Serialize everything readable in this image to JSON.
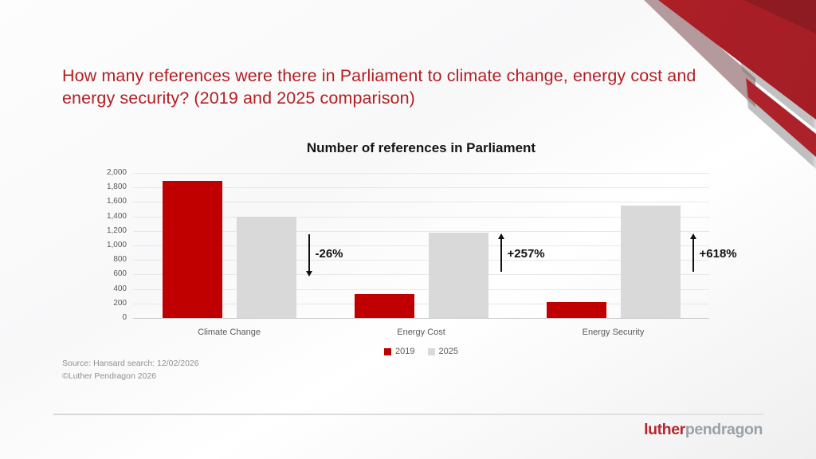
{
  "slide": {
    "title": "How many references were there in Parliament to climate change, energy cost and energy security? (2019 and 2025 comparison)",
    "source_line1": "Source: Hansard search: 12/02/2026",
    "source_line2": "©Luther Pendragon 2026",
    "logo": {
      "part1": "luther",
      "part2": "pendragon"
    }
  },
  "colors": {
    "title_red": "#b11f24",
    "series_2019": "#c00000",
    "series_2025": "#d9d9d9",
    "corner_red": "#b22129",
    "corner_dark_red": "#8d1b21",
    "corner_mauve": "#b59a9d",
    "axis_text": "#595959",
    "gridline": "#e8e8e8",
    "logo_red": "#b3282d",
    "logo_gray": "#9aa1a8"
  },
  "chart_data": {
    "type": "bar",
    "title": "Number of references in Parliament",
    "categories": [
      "Climate Change",
      "Energy Cost",
      "Energy Security"
    ],
    "series": [
      {
        "name": "2019",
        "color": "#c00000",
        "values": [
          1890,
          330,
          215
        ]
      },
      {
        "name": "2025",
        "color": "#d9d9d9",
        "values": [
          1400,
          1180,
          1545
        ]
      }
    ],
    "annotations": [
      {
        "label": "-26%",
        "direction": "down"
      },
      {
        "label": "+257%",
        "direction": "up"
      },
      {
        "label": "+618%",
        "direction": "up"
      }
    ],
    "xlabel": "",
    "ylabel": "",
    "ylim": [
      0,
      2000
    ],
    "ytick_step": 200,
    "ytick_labels": [
      "0",
      "200",
      "400",
      "600",
      "800",
      "1,000",
      "1,200",
      "1,400",
      "1,600",
      "1,800",
      "2,000"
    ],
    "grid": true,
    "legend_position": "bottom"
  }
}
